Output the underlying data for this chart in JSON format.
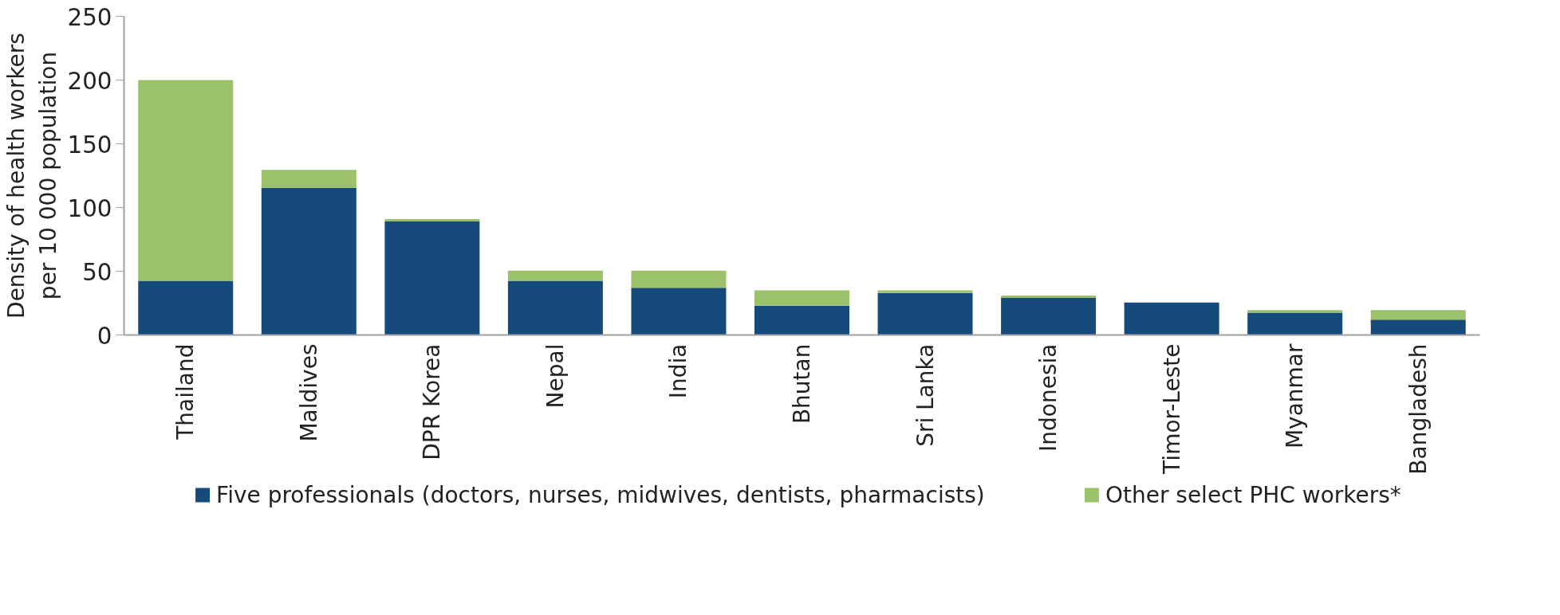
{
  "chart_data": {
    "type": "bar",
    "stacked": true,
    "ylabel": "Density of health workers\nper 10 000 population",
    "categories": [
      "Thailand",
      "Maldives",
      "DPR Korea",
      "Nepal",
      "India",
      "Bhutan",
      "Sri Lanka",
      "Indonesia",
      "Timor-Leste",
      "Myanmar",
      "Bangladesh"
    ],
    "series": [
      {
        "name": "Five professionals (doctors, nurses, midwives, dentists, pharmacists)",
        "color": "#174a7c",
        "values": [
          42.5,
          115.5,
          89,
          42.5,
          37,
          23,
          33,
          29,
          25.5,
          17.5,
          12
        ]
      },
      {
        "name": "Other select PHC workers*",
        "color": "#9bc26a",
        "values": [
          157.5,
          14,
          2,
          8,
          13.5,
          12,
          2,
          2,
          0,
          2,
          7.5
        ]
      }
    ],
    "ylim": [
      0,
      250
    ],
    "yticks": [
      0,
      50,
      100,
      150,
      200,
      250
    ],
    "grid": false,
    "legend": "bottom"
  }
}
